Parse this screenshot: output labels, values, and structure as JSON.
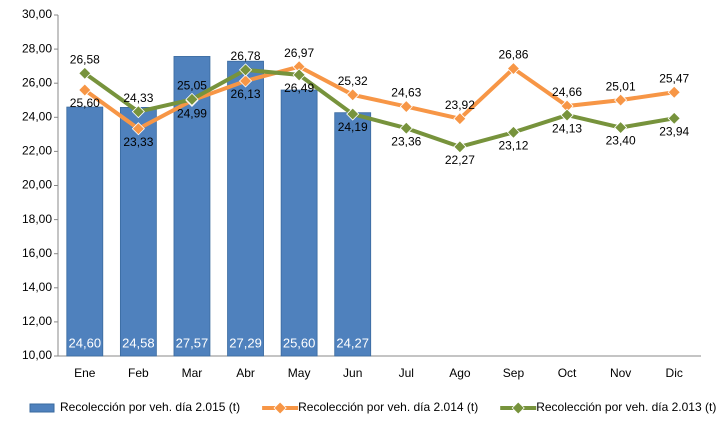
{
  "chart_data": {
    "type": "combo",
    "categories": [
      "Ene",
      "Feb",
      "Mar",
      "Abr",
      "May",
      "Jun",
      "Jul",
      "Ago",
      "Sep",
      "Oct",
      "Nov",
      "Dic"
    ],
    "series": [
      {
        "name": "Recolección por veh. día 2.015 (t)",
        "type": "bar",
        "color": "#4f81bd",
        "values": [
          24.6,
          24.58,
          27.57,
          27.29,
          25.6,
          24.27,
          null,
          null,
          null,
          null,
          null,
          null
        ],
        "value_labels": [
          "24,60",
          "24,58",
          "27,57",
          "27,29",
          "25,60",
          "24,27",
          null,
          null,
          null,
          null,
          null,
          null
        ]
      },
      {
        "name": "Recolección por veh. día 2.014 (t)",
        "type": "line",
        "color": "#f79646",
        "values": [
          25.6,
          23.33,
          24.99,
          26.13,
          26.97,
          25.32,
          24.63,
          23.92,
          26.86,
          24.66,
          25.01,
          25.47
        ],
        "value_labels": [
          "25,60",
          "23,33",
          "24,99",
          "26,13",
          "26,97",
          "25,32",
          "24,63",
          "23,92",
          "26,86",
          "24,66",
          "25,01",
          "25,47"
        ]
      },
      {
        "name": "Recolección por veh. día 2.013 (t)",
        "type": "line",
        "color": "#77933c",
        "values": [
          26.58,
          24.33,
          25.05,
          26.78,
          26.49,
          24.19,
          23.36,
          22.27,
          23.12,
          24.13,
          23.4,
          23.94
        ],
        "value_labels": [
          "26,58",
          "24,33",
          "25,05",
          "26,78",
          "26,49",
          "24,19",
          "23,36",
          "22,27",
          "23,12",
          "24,13",
          "23,40",
          "23,94"
        ]
      }
    ],
    "ylim": [
      10,
      30
    ],
    "yticks": [
      {
        "value": 10,
        "label": "10,00"
      },
      {
        "value": 12,
        "label": "12,00"
      },
      {
        "value": 14,
        "label": "14,00"
      },
      {
        "value": 16,
        "label": "16,00"
      },
      {
        "value": 18,
        "label": "18,00"
      },
      {
        "value": 20,
        "label": "20,00"
      },
      {
        "value": 22,
        "label": "22,00"
      },
      {
        "value": 24,
        "label": "24,00"
      },
      {
        "value": 26,
        "label": "26,00"
      },
      {
        "value": 28,
        "label": "28,00"
      },
      {
        "value": 30,
        "label": "30,00"
      }
    ],
    "grid": false,
    "legend": "bottom"
  }
}
